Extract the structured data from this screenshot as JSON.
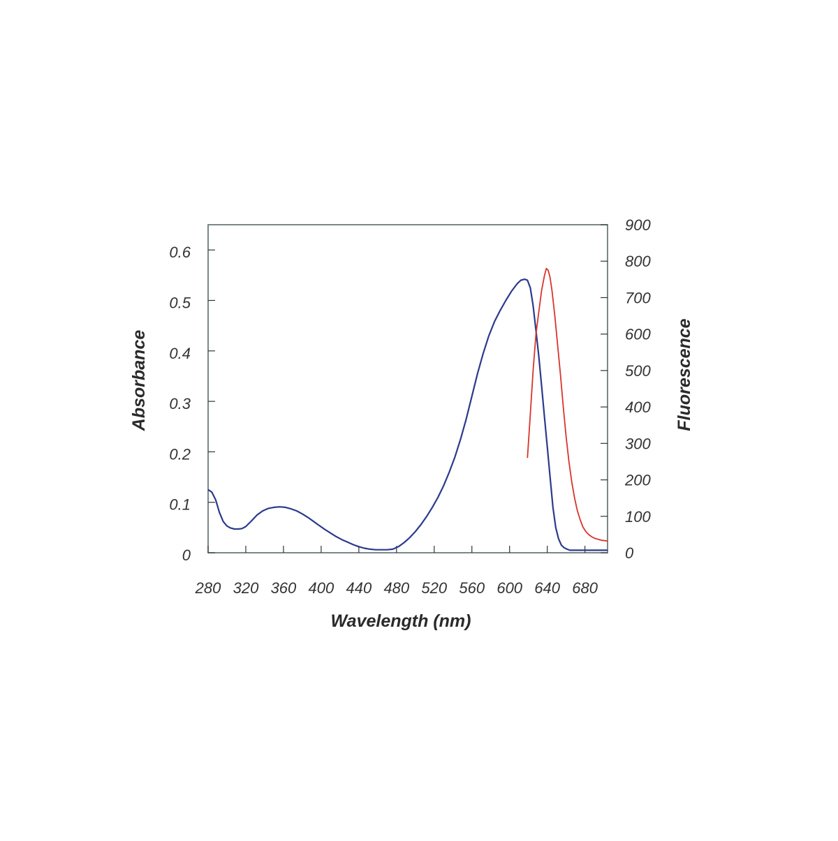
{
  "chart_data": {
    "type": "line",
    "xlabel": "Wavelength (nm)",
    "ylabel": "Absorbance",
    "y2label": "Fluorescence",
    "xlim": [
      280,
      704
    ],
    "ylim": [
      0,
      0.65
    ],
    "y2lim": [
      0,
      900
    ],
    "xticks": [
      280,
      320,
      360,
      400,
      440,
      480,
      520,
      560,
      600,
      640,
      680
    ],
    "yticks": [
      0,
      0.1,
      0.2,
      0.3,
      0.4,
      0.5,
      0.6
    ],
    "ytick_labels": [
      "0",
      "0.1",
      "0.2",
      "0.3",
      "0.4",
      "0.5",
      "0.6"
    ],
    "y2ticks": [
      0,
      100,
      200,
      300,
      400,
      500,
      600,
      700,
      800,
      900
    ],
    "grid": false,
    "colors": {
      "absorbance": "#2b3a8c",
      "fluorescence": "#d9342b",
      "frame": "#5a6b6b"
    },
    "series": [
      {
        "axis": "left",
        "x": [
          280,
          284,
          288,
          292,
          296,
          300,
          304,
          308,
          312,
          316,
          320,
          326,
          332,
          338,
          344,
          350,
          356,
          362,
          368,
          374,
          380,
          386,
          392,
          398,
          404,
          410,
          416,
          422,
          428,
          434,
          440,
          446,
          452,
          458,
          464,
          470,
          476,
          482,
          488,
          494,
          500,
          506,
          512,
          518,
          524,
          530,
          536,
          542,
          548,
          554,
          560,
          566,
          572,
          578,
          584,
          590,
          596,
          602,
          608,
          612,
          616,
          619,
          622,
          625,
          628,
          631,
          634,
          637,
          640,
          643,
          646,
          649,
          652,
          655,
          658,
          661,
          664,
          668,
          672,
          676,
          680,
          690,
          704
        ],
        "y": [
          0.125,
          0.12,
          0.105,
          0.08,
          0.062,
          0.053,
          0.049,
          0.047,
          0.047,
          0.048,
          0.052,
          0.063,
          0.075,
          0.083,
          0.088,
          0.09,
          0.091,
          0.09,
          0.087,
          0.083,
          0.077,
          0.07,
          0.062,
          0.054,
          0.046,
          0.039,
          0.032,
          0.026,
          0.021,
          0.016,
          0.012,
          0.009,
          0.007,
          0.006,
          0.006,
          0.006,
          0.007,
          0.012,
          0.02,
          0.03,
          0.042,
          0.056,
          0.072,
          0.09,
          0.11,
          0.133,
          0.16,
          0.19,
          0.225,
          0.265,
          0.31,
          0.355,
          0.395,
          0.43,
          0.458,
          0.48,
          0.5,
          0.518,
          0.533,
          0.54,
          0.542,
          0.54,
          0.525,
          0.49,
          0.44,
          0.39,
          0.33,
          0.27,
          0.21,
          0.15,
          0.09,
          0.05,
          0.028,
          0.015,
          0.01,
          0.007,
          0.005,
          0.005,
          0.005,
          0.005,
          0.005,
          0.005,
          0.005
        ]
      },
      {
        "axis": "right",
        "x": [
          619,
          622,
          625,
          628,
          631,
          634,
          637,
          639,
          641,
          643,
          645,
          648,
          651,
          654,
          657,
          660,
          663,
          666,
          669,
          672,
          675,
          678,
          681,
          684,
          687,
          690,
          694,
          698,
          702,
          704
        ],
        "y": [
          260,
          380,
          500,
          600,
          660,
          720,
          760,
          780,
          775,
          755,
          720,
          650,
          570,
          490,
          400,
          320,
          250,
          195,
          150,
          115,
          90,
          70,
          58,
          50,
          44,
          40,
          37,
          34,
          33,
          32
        ]
      }
    ]
  }
}
